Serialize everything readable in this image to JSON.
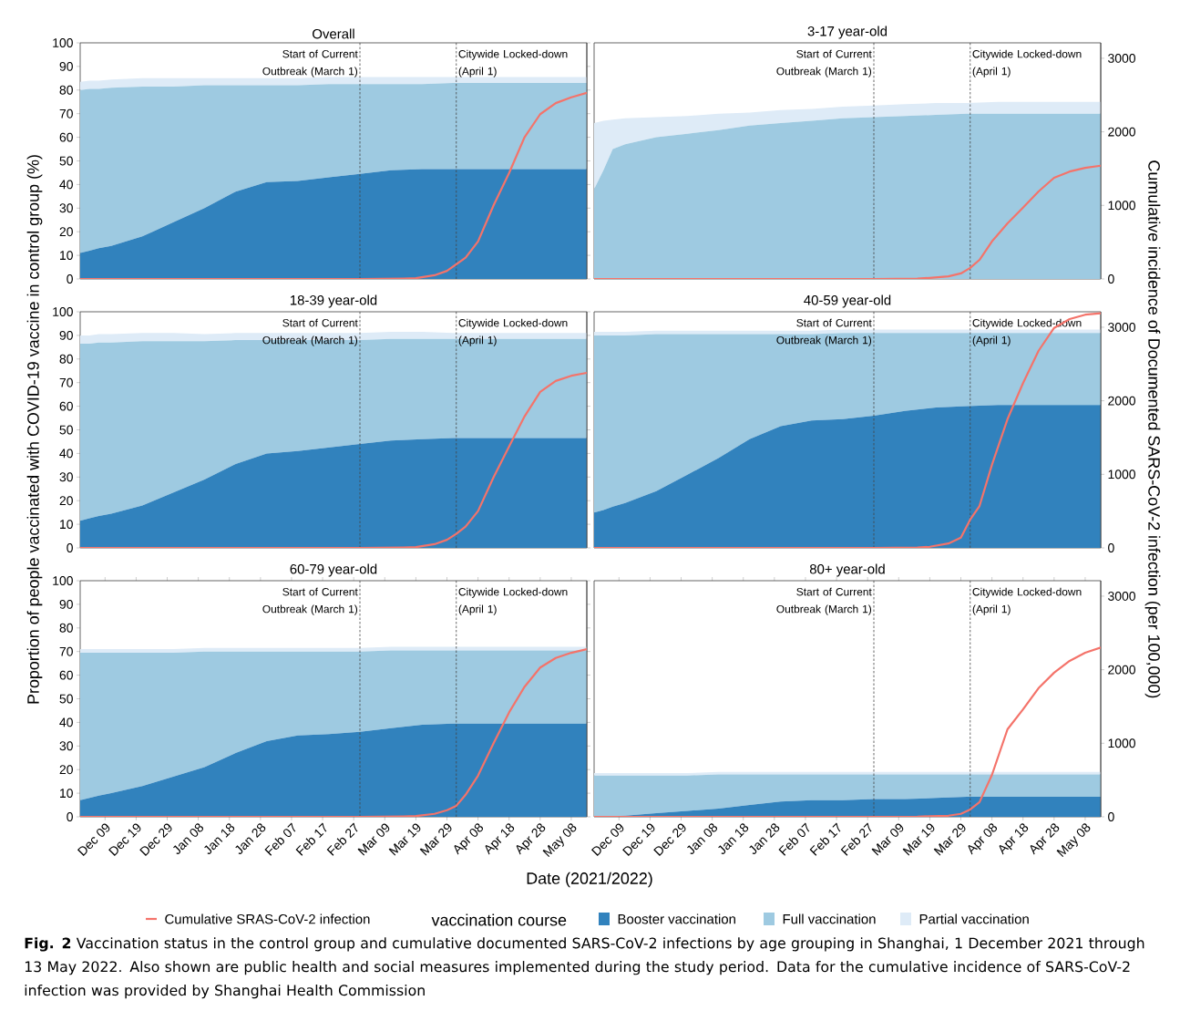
{
  "chart_data": [
    {
      "type": "area",
      "title": "Overall",
      "stacked": true,
      "legend": "bottom",
      "legend_title": "vaccination course",
      "ylabel": "Proportion of people vaccinated with COVID-19 vaccine in control group (%)",
      "annotations": [
        "**Fig. 2** Vaccination status in the control group and cumulative documented SARS-CoV-2 infections by age grouping in Shanghai, 1 December 2021 through 13 May 2022. Also shown are public health and social measures implemented during the study period. Data for the cumulative incidence of SARS-CoV-2 infection was provided by Shanghai Health Commission"
      ],
      "x": [
        "2021-12-01",
        "2021-12-04",
        "2021-12-07",
        "2021-12-11",
        "2021-12-21",
        "2021-12-31",
        "2022-01-10",
        "2022-01-20",
        "2022-01-30",
        "2022-02-09",
        "2022-02-19",
        "2022-03-01",
        "2022-03-11",
        "2022-03-21",
        "2022-03-31",
        "2022-04-10",
        "2022-04-20",
        "2022-04-30",
        "2022-05-10",
        "2022-05-13"
      ],
      "series": [
        {
          "name": "Booster vaccination",
          "color": "#3182bd",
          "values": [
            11,
            12,
            13,
            14,
            18,
            24,
            30,
            37,
            41,
            41.5,
            43,
            44.5,
            46,
            46.5,
            46.5,
            46.5,
            46.5,
            46.5,
            46.5,
            46.5
          ]
        },
        {
          "name": "Full vaccination",
          "color": "#9ecae1",
          "values": [
            69,
            68.5,
            67.5,
            67,
            63.5,
            57.5,
            52,
            45,
            41,
            40.5,
            39.5,
            38,
            36.5,
            36,
            36.5,
            36.5,
            36.5,
            36.5,
            36.5,
            36.5
          ]
        },
        {
          "name": "Partial vaccination",
          "color": "#deebf7",
          "values": [
            3.5,
            3.5,
            3.5,
            3.5,
            3.5,
            3.5,
            3,
            3,
            3,
            3,
            3,
            3,
            3,
            3,
            2.5,
            2.5,
            2.5,
            2.5,
            2.5,
            2.5
          ]
        },
        {
          "name": "Cumulative SRAS-CoV-2 infection",
          "type": "line",
          "axis": "y2",
          "color": "#f4736a",
          "x": [
            "2021-12-01",
            "2022-03-01",
            "2022-03-15",
            "2022-03-19",
            "2022-03-25",
            "2022-03-29",
            "2022-04-01",
            "2022-04-04",
            "2022-04-08",
            "2022-04-13",
            "2022-04-18",
            "2022-04-23",
            "2022-04-28",
            "2022-05-03",
            "2022-05-08",
            "2022-05-13"
          ],
          "values": [
            0,
            0,
            5,
            10,
            50,
            110,
            200,
            290,
            510,
            1000,
            1440,
            1930,
            2240,
            2390,
            2470,
            2530
          ]
        }
      ],
      "xlim": [
        "2021-12-01",
        "2022-05-13"
      ],
      "ylim": [
        0,
        100
      ],
      "y2lim": [
        0,
        3210
      ],
      "yticks": [
        0,
        10,
        20,
        30,
        40,
        50,
        60,
        70,
        80,
        90,
        100
      ],
      "ref_lines": [
        {
          "axis": "x",
          "value": "2022-03-01",
          "label": "Start of Current Outbreak (March 1)",
          "line_style": "dashed",
          "color": "#444444"
        },
        {
          "axis": "x",
          "value": "2022-04-01",
          "label": "Citywide Locked-down (April 1)",
          "line_style": "dashed",
          "color": "#444444"
        }
      ],
      "tick_labels": [
        "y"
      ]
    },
    {
      "type": "area",
      "title": "3-17 year-old",
      "stacked": true,
      "y2label": "Cumulative incidence of Documented SARS-CoV-2 infection (per 100,000)",
      "x": [
        "2021-12-01",
        "2021-12-04",
        "2021-12-07",
        "2021-12-11",
        "2021-12-21",
        "2021-12-31",
        "2022-01-10",
        "2022-01-20",
        "2022-01-30",
        "2022-02-09",
        "2022-02-19",
        "2022-03-01",
        "2022-03-11",
        "2022-03-21",
        "2022-03-31",
        "2022-04-10",
        "2022-04-20",
        "2022-04-30",
        "2022-05-10",
        "2022-05-13"
      ],
      "series": [
        {
          "color": "#9ecae1",
          "values": [
            38,
            46,
            55,
            57,
            60,
            61.5,
            63,
            65,
            66,
            67,
            68,
            68.5,
            69,
            69.5,
            70,
            70,
            70,
            70,
            70,
            70
          ]
        },
        {
          "color": "#deebf7",
          "values": [
            28,
            21,
            12.5,
            11,
            8.5,
            7.5,
            7,
            5.5,
            5.5,
            5,
            5,
            5,
            5,
            5,
            4.5,
            5,
            5,
            5,
            5,
            5
          ]
        },
        {
          "type": "line",
          "axis": "y2",
          "color": "#f4736a",
          "x": [
            "2021-12-01",
            "2022-03-01",
            "2022-03-15",
            "2022-03-19",
            "2022-03-25",
            "2022-03-29",
            "2022-04-01",
            "2022-04-04",
            "2022-04-08",
            "2022-04-13",
            "2022-04-18",
            "2022-04-23",
            "2022-04-28",
            "2022-05-03",
            "2022-05-08",
            "2022-05-13"
          ],
          "values": [
            0,
            0,
            5,
            15,
            35,
            75,
            150,
            260,
            510,
            755,
            970,
            1190,
            1375,
            1460,
            1510,
            1540
          ]
        }
      ],
      "xlim": [
        "2021-12-01",
        "2022-05-13"
      ],
      "ylim": [
        0,
        100
      ],
      "y2lim": [
        0,
        3210
      ],
      "y2ticks": [
        0,
        1000,
        2000,
        3000
      ],
      "ref_lines": [
        {
          "axis": "x",
          "value": "2022-03-01",
          "label": "Start of Current Outbreak (March 1)",
          "line_style": "dashed",
          "color": "#444444"
        },
        {
          "axis": "x",
          "value": "2022-04-01",
          "label": "Citywide Locked-down (April 1)",
          "line_style": "dashed",
          "color": "#444444"
        }
      ],
      "tick_labels": [
        "y2"
      ]
    },
    {
      "type": "area",
      "title": "18-39 year-old",
      "stacked": true,
      "x": [
        "2021-12-01",
        "2021-12-04",
        "2021-12-07",
        "2021-12-11",
        "2021-12-21",
        "2021-12-31",
        "2022-01-10",
        "2022-01-20",
        "2022-01-30",
        "2022-02-09",
        "2022-02-19",
        "2022-03-01",
        "2022-03-11",
        "2022-03-21",
        "2022-03-31",
        "2022-04-10",
        "2022-04-20",
        "2022-04-30",
        "2022-05-10",
        "2022-05-13"
      ],
      "series": [
        {
          "color": "#3182bd",
          "values": [
            11.5,
            12.5,
            13.5,
            14.5,
            18,
            23.5,
            29,
            35.5,
            40,
            41,
            42.5,
            44,
            45.5,
            46,
            46.5,
            46.5,
            46.5,
            46.5,
            46.5,
            46.5
          ]
        },
        {
          "color": "#9ecae1",
          "values": [
            75,
            74,
            73.5,
            72.5,
            69.5,
            64,
            58.5,
            52.5,
            48,
            47,
            45.5,
            44,
            43,
            42.5,
            42,
            42,
            42,
            42,
            42,
            42
          ]
        },
        {
          "color": "#deebf7",
          "values": [
            3.5,
            3.5,
            3.5,
            3.5,
            3.5,
            3.5,
            3,
            3,
            3,
            3,
            3,
            3,
            3,
            3,
            2.5,
            2.5,
            2.5,
            2.5,
            2.5,
            2.5
          ]
        },
        {
          "type": "line",
          "axis": "y2",
          "color": "#f4736a",
          "x": [
            "2021-12-01",
            "2022-03-01",
            "2022-03-15",
            "2022-03-19",
            "2022-03-25",
            "2022-03-29",
            "2022-04-01",
            "2022-04-04",
            "2022-04-08",
            "2022-04-13",
            "2022-04-18",
            "2022-04-23",
            "2022-04-28",
            "2022-05-03",
            "2022-05-08",
            "2022-05-13"
          ],
          "values": [
            0,
            0,
            5,
            10,
            50,
            110,
            190,
            290,
            500,
            960,
            1380,
            1790,
            2120,
            2270,
            2340,
            2380
          ]
        }
      ],
      "xlim": [
        "2021-12-01",
        "2022-05-13"
      ],
      "ylim": [
        0,
        100
      ],
      "y2lim": [
        0,
        3210
      ],
      "yticks": [
        0,
        10,
        20,
        30,
        40,
        50,
        60,
        70,
        80,
        90,
        100
      ],
      "ref_lines": [
        {
          "axis": "x",
          "value": "2022-03-01",
          "label": "Start of Current Outbreak (March 1)",
          "line_style": "dashed",
          "color": "#444444"
        },
        {
          "axis": "x",
          "value": "2022-04-01",
          "label": "Citywide Locked-down (April 1)",
          "line_style": "dashed",
          "color": "#444444"
        }
      ],
      "tick_labels": [
        "y"
      ]
    },
    {
      "type": "area",
      "title": "40-59 year-old",
      "stacked": true,
      "x": [
        "2021-12-01",
        "2021-12-04",
        "2021-12-07",
        "2021-12-11",
        "2021-12-21",
        "2021-12-31",
        "2022-01-10",
        "2022-01-20",
        "2022-01-30",
        "2022-02-09",
        "2022-02-19",
        "2022-03-01",
        "2022-03-11",
        "2022-03-21",
        "2022-03-31",
        "2022-04-10",
        "2022-04-20",
        "2022-04-30",
        "2022-05-10",
        "2022-05-13"
      ],
      "series": [
        {
          "color": "#3182bd",
          "values": [
            15,
            16,
            17.5,
            19,
            24,
            31,
            38,
            46,
            51.5,
            54,
            54.5,
            56,
            58,
            59.5,
            60,
            60.5,
            60.5,
            60.5,
            60.5,
            60.5
          ]
        },
        {
          "color": "#9ecae1",
          "values": [
            75,
            74,
            72.5,
            71,
            66.5,
            59.5,
            52.5,
            44.5,
            39,
            36.5,
            36.5,
            35,
            33,
            31.5,
            31,
            30.5,
            30.5,
            30.5,
            30.5,
            30.5
          ]
        },
        {
          "color": "#deebf7",
          "values": [
            1.5,
            1.5,
            1.5,
            1.5,
            1.5,
            1.5,
            1.5,
            1.5,
            1.5,
            1.5,
            1.5,
            1.5,
            1.5,
            1.5,
            1.5,
            1.5,
            1.5,
            1.5,
            1.5,
            1.5
          ]
        },
        {
          "type": "line",
          "axis": "y2",
          "color": "#f4736a",
          "x": [
            "2021-12-01",
            "2022-03-01",
            "2022-03-15",
            "2022-03-19",
            "2022-03-25",
            "2022-03-29",
            "2022-04-01",
            "2022-04-04",
            "2022-04-08",
            "2022-04-13",
            "2022-04-18",
            "2022-04-23",
            "2022-04-28",
            "2022-05-03",
            "2022-05-08",
            "2022-05-13"
          ],
          "values": [
            0,
            0,
            5,
            15,
            60,
            140,
            385,
            570,
            1130,
            1750,
            2240,
            2680,
            2990,
            3110,
            3170,
            3190
          ]
        }
      ],
      "xlim": [
        "2021-12-01",
        "2022-05-13"
      ],
      "ylim": [
        0,
        100
      ],
      "y2lim": [
        0,
        3210
      ],
      "y2ticks": [
        0,
        1000,
        2000,
        3000
      ],
      "ref_lines": [
        {
          "axis": "x",
          "value": "2022-03-01",
          "label": "Start of Current Outbreak (March 1)",
          "line_style": "dashed",
          "color": "#444444"
        },
        {
          "axis": "x",
          "value": "2022-04-01",
          "label": "Citywide Locked-down (April 1)",
          "line_style": "dashed",
          "color": "#444444"
        }
      ],
      "tick_labels": [
        "y2"
      ]
    },
    {
      "type": "area",
      "title": "60-79 year-old",
      "stacked": true,
      "xlabel": "Date (2021/2022)",
      "x": [
        "2021-12-01",
        "2021-12-04",
        "2021-12-07",
        "2021-12-11",
        "2021-12-21",
        "2021-12-31",
        "2022-01-10",
        "2022-01-20",
        "2022-01-30",
        "2022-02-09",
        "2022-02-19",
        "2022-03-01",
        "2022-03-11",
        "2022-03-21",
        "2022-03-31",
        "2022-04-10",
        "2022-04-20",
        "2022-04-30",
        "2022-05-10",
        "2022-05-13"
      ],
      "series": [
        {
          "color": "#3182bd",
          "values": [
            7,
            8,
            9,
            10,
            13,
            17,
            21,
            27,
            32,
            34.5,
            35,
            36,
            37.5,
            39,
            39.5,
            39.5,
            39.5,
            39.5,
            39.5,
            39.5
          ]
        },
        {
          "color": "#9ecae1",
          "values": [
            62.5,
            61.5,
            60.5,
            59.5,
            56.5,
            52.5,
            49,
            43,
            38,
            35.5,
            35,
            34,
            33,
            31.5,
            31,
            31,
            31,
            31,
            31,
            31
          ]
        },
        {
          "color": "#deebf7",
          "values": [
            1.5,
            1.5,
            1.5,
            1.5,
            1.5,
            1.5,
            1.5,
            1.5,
            1.5,
            1.5,
            1.5,
            1.5,
            1.5,
            1.5,
            1.5,
            1.5,
            1.5,
            1.5,
            1.5,
            1.5
          ]
        },
        {
          "type": "line",
          "axis": "y2",
          "color": "#f4736a",
          "x": [
            "2021-12-01",
            "2022-03-01",
            "2022-03-15",
            "2022-03-19",
            "2022-03-25",
            "2022-03-29",
            "2022-04-01",
            "2022-04-04",
            "2022-04-08",
            "2022-04-13",
            "2022-04-18",
            "2022-04-23",
            "2022-04-28",
            "2022-05-03",
            "2022-05-08",
            "2022-05-13"
          ],
          "values": [
            0,
            0,
            5,
            10,
            40,
            90,
            150,
            300,
            560,
            1000,
            1420,
            1770,
            2030,
            2160,
            2230,
            2280
          ]
        }
      ],
      "xlim": [
        "2021-12-01",
        "2022-05-13"
      ],
      "ylim": [
        0,
        100
      ],
      "y2lim": [
        0,
        3210
      ],
      "xticks": [
        {
          "value": "2021-12-09",
          "label": "Dec 09"
        },
        {
          "value": "2021-12-19",
          "label": "Dec 19"
        },
        {
          "value": "2021-12-29",
          "label": "Dec 29"
        },
        {
          "value": "2022-01-08",
          "label": "Jan 08"
        },
        {
          "value": "2022-01-18",
          "label": "Jan 18"
        },
        {
          "value": "2022-01-28",
          "label": "Jan 28"
        },
        {
          "value": "2022-02-07",
          "label": "Feb 07"
        },
        {
          "value": "2022-02-17",
          "label": "Feb 17"
        },
        {
          "value": "2022-02-27",
          "label": "Feb 27"
        },
        {
          "value": "2022-03-09",
          "label": "Mar 09"
        },
        {
          "value": "2022-03-19",
          "label": "Mar 19"
        },
        {
          "value": "2022-03-29",
          "label": "Mar 29"
        },
        {
          "value": "2022-04-08",
          "label": "Apr 08"
        },
        {
          "value": "2022-04-18",
          "label": "Apr 18"
        },
        {
          "value": "2022-04-28",
          "label": "Apr 28"
        },
        {
          "value": "2022-05-08",
          "label": "May 08"
        }
      ],
      "yticks": [
        0,
        10,
        20,
        30,
        40,
        50,
        60,
        70,
        80,
        90,
        100
      ],
      "ref_lines": [
        {
          "axis": "x",
          "value": "2022-03-01",
          "label": "Start of Current Outbreak (March 1)",
          "line_style": "dashed",
          "color": "#444444"
        },
        {
          "axis": "x",
          "value": "2022-04-01",
          "label": "Citywide Locked-down (April 1)",
          "line_style": "dashed",
          "color": "#444444"
        }
      ],
      "tick_labels": [
        "x",
        "y"
      ]
    },
    {
      "type": "area",
      "title": "80+ year-old",
      "stacked": true,
      "x": [
        "2021-12-01",
        "2021-12-04",
        "2021-12-07",
        "2021-12-11",
        "2021-12-21",
        "2021-12-31",
        "2022-01-10",
        "2022-01-20",
        "2022-01-30",
        "2022-02-09",
        "2022-02-19",
        "2022-03-01",
        "2022-03-11",
        "2022-03-21",
        "2022-03-31",
        "2022-04-10",
        "2022-04-20",
        "2022-04-30",
        "2022-05-10",
        "2022-05-13"
      ],
      "series": [
        {
          "color": "#3182bd",
          "values": [
            0,
            0,
            0.2,
            0.5,
            1.5,
            2.5,
            3.5,
            5,
            6.5,
            7,
            7,
            7.5,
            7.5,
            8,
            8.5,
            8.5,
            8.5,
            8.5,
            8.5,
            8.5
          ]
        },
        {
          "color": "#9ecae1",
          "values": [
            17.5,
            17.5,
            17.3,
            17,
            16,
            15,
            14.5,
            13,
            11.5,
            11,
            11,
            10.5,
            10.5,
            10,
            9.5,
            9.5,
            9.5,
            9.5,
            9.5,
            9.5
          ]
        },
        {
          "color": "#deebf7",
          "values": [
            1,
            1,
            1,
            1,
            1,
            1,
            1,
            1,
            1,
            1,
            1,
            1,
            1,
            1,
            1,
            1,
            1,
            1,
            1,
            1
          ]
        },
        {
          "type": "line",
          "axis": "y2",
          "color": "#f4736a",
          "x": [
            "2021-12-01",
            "2022-03-01",
            "2022-03-15",
            "2022-03-19",
            "2022-03-25",
            "2022-03-29",
            "2022-04-01",
            "2022-04-04",
            "2022-04-08",
            "2022-04-13",
            "2022-04-18",
            "2022-04-23",
            "2022-04-28",
            "2022-05-03",
            "2022-05-08",
            "2022-05-13"
          ],
          "values": [
            0,
            0,
            3,
            8,
            15,
            40,
            100,
            200,
            570,
            1190,
            1460,
            1750,
            1960,
            2120,
            2230,
            2300
          ]
        }
      ],
      "xlim": [
        "2021-12-01",
        "2022-05-13"
      ],
      "ylim": [
        0,
        100
      ],
      "y2lim": [
        0,
        3210
      ],
      "xticks": [
        {
          "value": "2021-12-09",
          "label": "Dec 09"
        },
        {
          "value": "2021-12-19",
          "label": "Dec 19"
        },
        {
          "value": "2021-12-29",
          "label": "Dec 29"
        },
        {
          "value": "2022-01-08",
          "label": "Jan 08"
        },
        {
          "value": "2022-01-18",
          "label": "Jan 18"
        },
        {
          "value": "2022-01-28",
          "label": "Jan 28"
        },
        {
          "value": "2022-02-07",
          "label": "Feb 07"
        },
        {
          "value": "2022-02-17",
          "label": "Feb 17"
        },
        {
          "value": "2022-02-27",
          "label": "Feb 27"
        },
        {
          "value": "2022-03-09",
          "label": "Mar 09"
        },
        {
          "value": "2022-03-19",
          "label": "Mar 19"
        },
        {
          "value": "2022-03-29",
          "label": "Mar 29"
        },
        {
          "value": "2022-04-08",
          "label": "Apr 08"
        },
        {
          "value": "2022-04-18",
          "label": "Apr 18"
        },
        {
          "value": "2022-04-28",
          "label": "Apr 28"
        },
        {
          "value": "2022-05-08",
          "label": "May 08"
        }
      ],
      "y2ticks": [
        0,
        1000,
        2000,
        3000
      ],
      "ref_lines": [
        {
          "axis": "x",
          "value": "2022-03-01",
          "label": "Start of Current Outbreak (March 1)",
          "line_style": "dashed",
          "color": "#444444"
        },
        {
          "axis": "x",
          "value": "2022-04-01",
          "label": "Citywide Locked-down (April 1)",
          "line_style": "dashed",
          "color": "#444444"
        }
      ],
      "tick_labels": [
        "x",
        "y2"
      ]
    }
  ]
}
